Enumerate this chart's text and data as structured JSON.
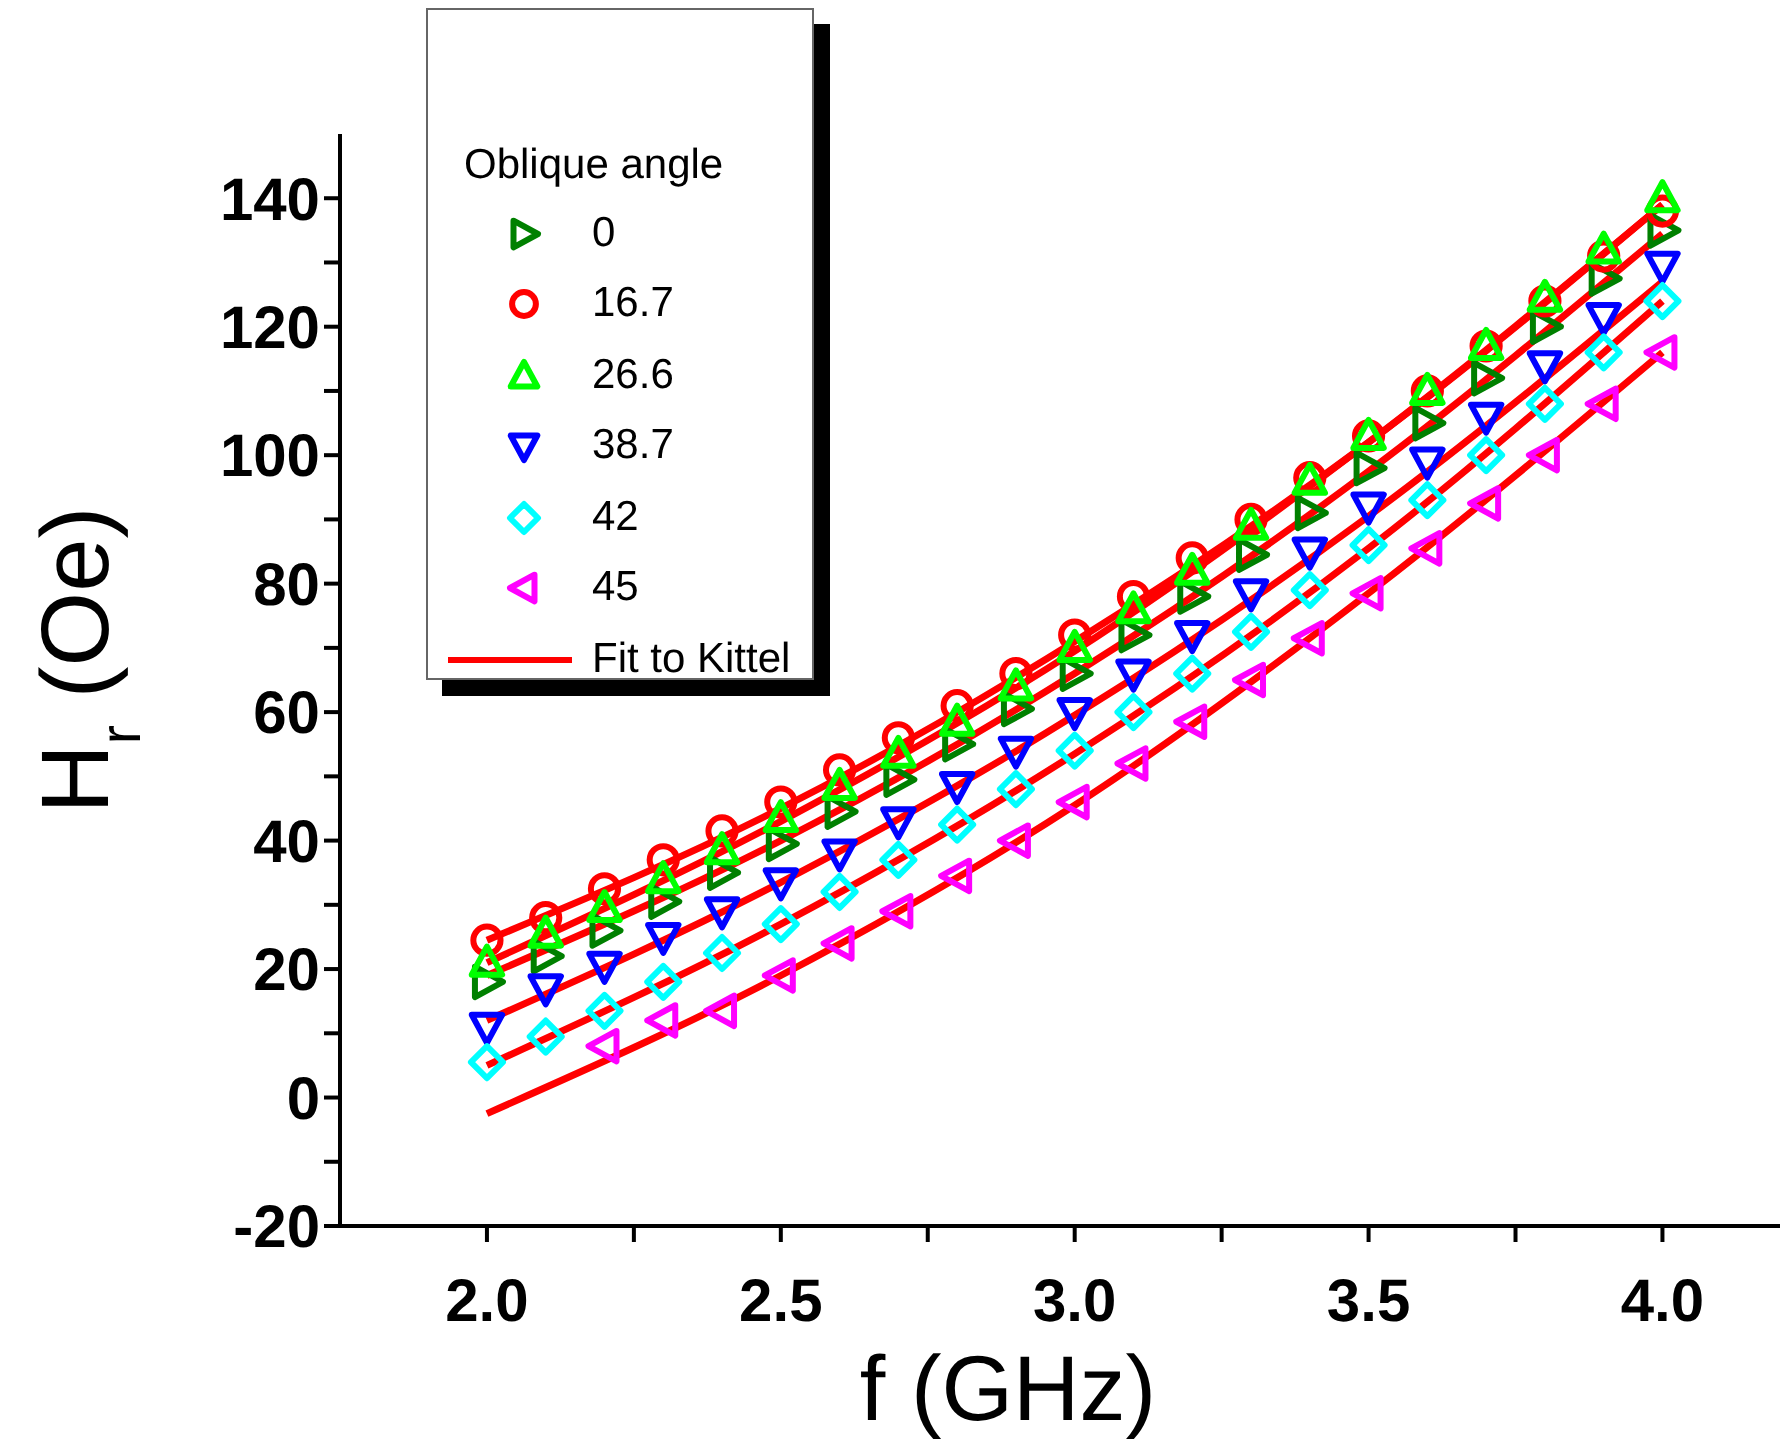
{
  "chart_data": {
    "type": "scatter",
    "xlabel": "f (GHz)",
    "ylabel": "H$_{r}$ (Oe)",
    "legend_title": "Oblique angle",
    "legend": "top left",
    "grid": false,
    "x": [
      2.0,
      2.1,
      2.2,
      2.3,
      2.4,
      2.5,
      2.6,
      2.7,
      2.8,
      2.9,
      3.0,
      3.1,
      3.2,
      3.3,
      3.4,
      3.5,
      3.6,
      3.7,
      3.8,
      3.9,
      4.0
    ],
    "xlim": [
      1.75,
      4.2
    ],
    "xticks": [
      {
        "value": 2.0,
        "label": "2.0"
      },
      {
        "value": 2.25,
        "label": null
      },
      {
        "value": 2.5,
        "label": "2.5"
      },
      {
        "value": 2.75,
        "label": null
      },
      {
        "value": 3.0,
        "label": "3.0"
      },
      {
        "value": 3.25,
        "label": null
      },
      {
        "value": 3.5,
        "label": "3.5"
      },
      {
        "value": 3.75,
        "label": null
      },
      {
        "value": 4.0,
        "label": "4.0"
      }
    ],
    "ylim": [
      -20,
      150
    ],
    "yticks": [
      -20,
      {
        "value": -10,
        "label": null
      },
      0,
      {
        "value": 10,
        "label": null
      },
      20,
      {
        "value": 30,
        "label": null
      },
      40,
      {
        "value": 50,
        "label": null
      },
      60,
      {
        "value": 70,
        "label": null
      },
      80,
      {
        "value": 90,
        "label": null
      },
      100,
      {
        "value": 110,
        "label": null
      },
      120,
      {
        "value": 130,
        "label": null
      },
      140
    ],
    "series": [
      {
        "name": "0",
        "color": "#008000",
        "marker": "triangle-right",
        "values": [
          18,
          22,
          26,
          30.5,
          35,
          39.5,
          44.5,
          49.5,
          55,
          60.5,
          66,
          72,
          78,
          84.5,
          91,
          98,
          105,
          112,
          120,
          127.5,
          135
        ]
      },
      {
        "name": "16.7",
        "color": "#ff0000",
        "marker": "circle",
        "values": [
          24.5,
          28,
          32.5,
          37,
          41.5,
          46,
          51,
          56,
          61,
          66,
          72,
          78,
          84,
          90,
          96.5,
          103,
          110,
          117,
          124,
          131,
          138
        ]
      },
      {
        "name": "26.6",
        "color": "#00ff00",
        "marker": "triangle",
        "values": [
          21,
          25.5,
          29.5,
          34,
          38.5,
          43.5,
          48.5,
          53.5,
          58.5,
          64,
          70,
          76,
          82,
          89,
          96,
          103,
          110,
          117,
          124.5,
          132,
          140
        ]
      },
      {
        "name": "38.7",
        "color": "#0000ff",
        "marker": "triangle-down",
        "values": [
          11,
          17,
          20.5,
          25,
          29,
          33.5,
          38,
          43,
          48.5,
          54,
          60,
          66,
          72,
          78.5,
          85,
          92,
          99,
          106,
          114,
          121.5,
          129.5
        ]
      },
      {
        "name": "42",
        "color": "#00ffff",
        "marker": "diamond",
        "values": [
          5.5,
          9.5,
          13.5,
          18,
          22.5,
          27,
          32,
          37,
          42.5,
          48,
          54,
          60,
          66,
          72.5,
          79,
          86,
          93,
          100,
          108,
          116,
          124
        ]
      },
      {
        "name": "45",
        "color": "#ff00ff",
        "marker": "triangle-left",
        "x": [
          2.2,
          2.3,
          2.4,
          2.5,
          2.6,
          2.7,
          2.8,
          2.9,
          3.0,
          3.1,
          3.2,
          3.3,
          3.4,
          3.5,
          3.6,
          3.7,
          3.8,
          3.9,
          4.0
        ],
        "values": [
          8,
          12,
          13.5,
          19,
          24,
          29,
          34.5,
          40,
          46,
          52,
          58.5,
          65,
          71.5,
          78.5,
          85.5,
          92.5,
          100,
          108,
          116
        ]
      },
      {
        "name": "Fit to Kittel",
        "type": "line",
        "color": "#ff0000",
        "marker": "none",
        "x": [
          2.0,
          2.5,
          3.0,
          3.5,
          4.0
        ],
        "values": [
          24.5,
          45,
          71,
          102,
          139
        ]
      },
      {
        "type": "line",
        "color": "#ff0000",
        "marker": "none",
        "x": [
          2.0,
          2.5,
          3.0,
          3.5,
          4.0
        ],
        "values": [
          21,
          43,
          69.5,
          102,
          139
        ]
      },
      {
        "type": "line",
        "color": "#ff0000",
        "marker": "none",
        "x": [
          2.0,
          2.5,
          3.0,
          3.5,
          4.0
        ],
        "values": [
          19,
          40,
          66,
          97.5,
          134.5
        ]
      },
      {
        "type": "line",
        "color": "#ff0000",
        "marker": "none",
        "x": [
          2.0,
          2.5,
          3.0,
          3.5,
          4.0
        ],
        "values": [
          12,
          33.5,
          59.5,
          90.5,
          127
        ]
      },
      {
        "type": "line",
        "color": "#ff0000",
        "marker": "none",
        "x": [
          2.0,
          2.5,
          3.0,
          3.5,
          4.0
        ],
        "values": [
          5,
          27,
          53.5,
          85.5,
          124
        ]
      },
      {
        "type": "line",
        "color": "#ff0000",
        "marker": "none",
        "x": [
          2.0,
          2.5,
          3.0,
          3.5,
          4.0
        ],
        "values": [
          -2.5,
          19,
          45.5,
          78.5,
          116
        ]
      }
    ]
  }
}
